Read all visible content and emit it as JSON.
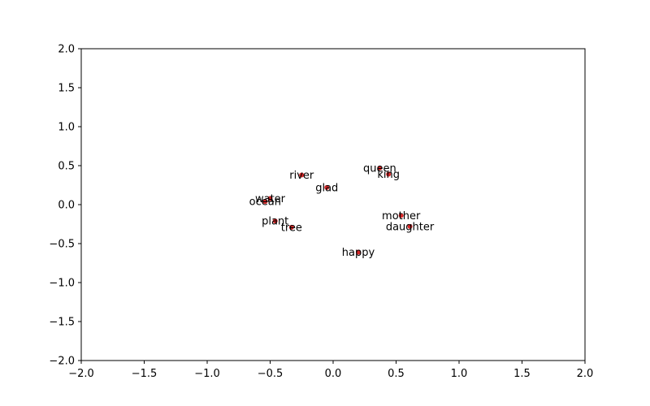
{
  "chart_data": {
    "type": "scatter",
    "xlim": [
      -2.0,
      2.0
    ],
    "ylim": [
      -2.0,
      2.0
    ],
    "x_ticks": [
      -2.0,
      -1.5,
      -1.0,
      -0.5,
      0.0,
      0.5,
      1.0,
      1.5,
      2.0
    ],
    "y_ticks": [
      -2.0,
      -1.5,
      -1.0,
      -0.5,
      0.0,
      0.5,
      1.0,
      1.5,
      2.0
    ],
    "x_tick_labels": [
      "−2.0",
      "−1.5",
      "−1.0",
      "−0.5",
      "0.0",
      "0.5",
      "1.0",
      "1.5",
      "2.0"
    ],
    "y_tick_labels": [
      "−2.0",
      "−1.5",
      "−1.0",
      "−0.5",
      "0.0",
      "0.5",
      "1.0",
      "1.5",
      "2.0"
    ],
    "grid": false,
    "point_color": "#d62728",
    "points": [
      {
        "label": "queen",
        "x": 0.37,
        "y": 0.47
      },
      {
        "label": "king",
        "x": 0.44,
        "y": 0.39
      },
      {
        "label": "river",
        "x": -0.25,
        "y": 0.38
      },
      {
        "label": "glad",
        "x": -0.05,
        "y": 0.22
      },
      {
        "label": "water",
        "x": -0.5,
        "y": 0.08
      },
      {
        "label": "ocean",
        "x": -0.54,
        "y": 0.04
      },
      {
        "label": "mother",
        "x": 0.54,
        "y": -0.14
      },
      {
        "label": "daughter",
        "x": 0.61,
        "y": -0.28
      },
      {
        "label": "plant",
        "x": -0.46,
        "y": -0.21
      },
      {
        "label": "tree",
        "x": -0.33,
        "y": -0.29
      },
      {
        "label": "happy",
        "x": 0.2,
        "y": -0.61
      }
    ]
  }
}
